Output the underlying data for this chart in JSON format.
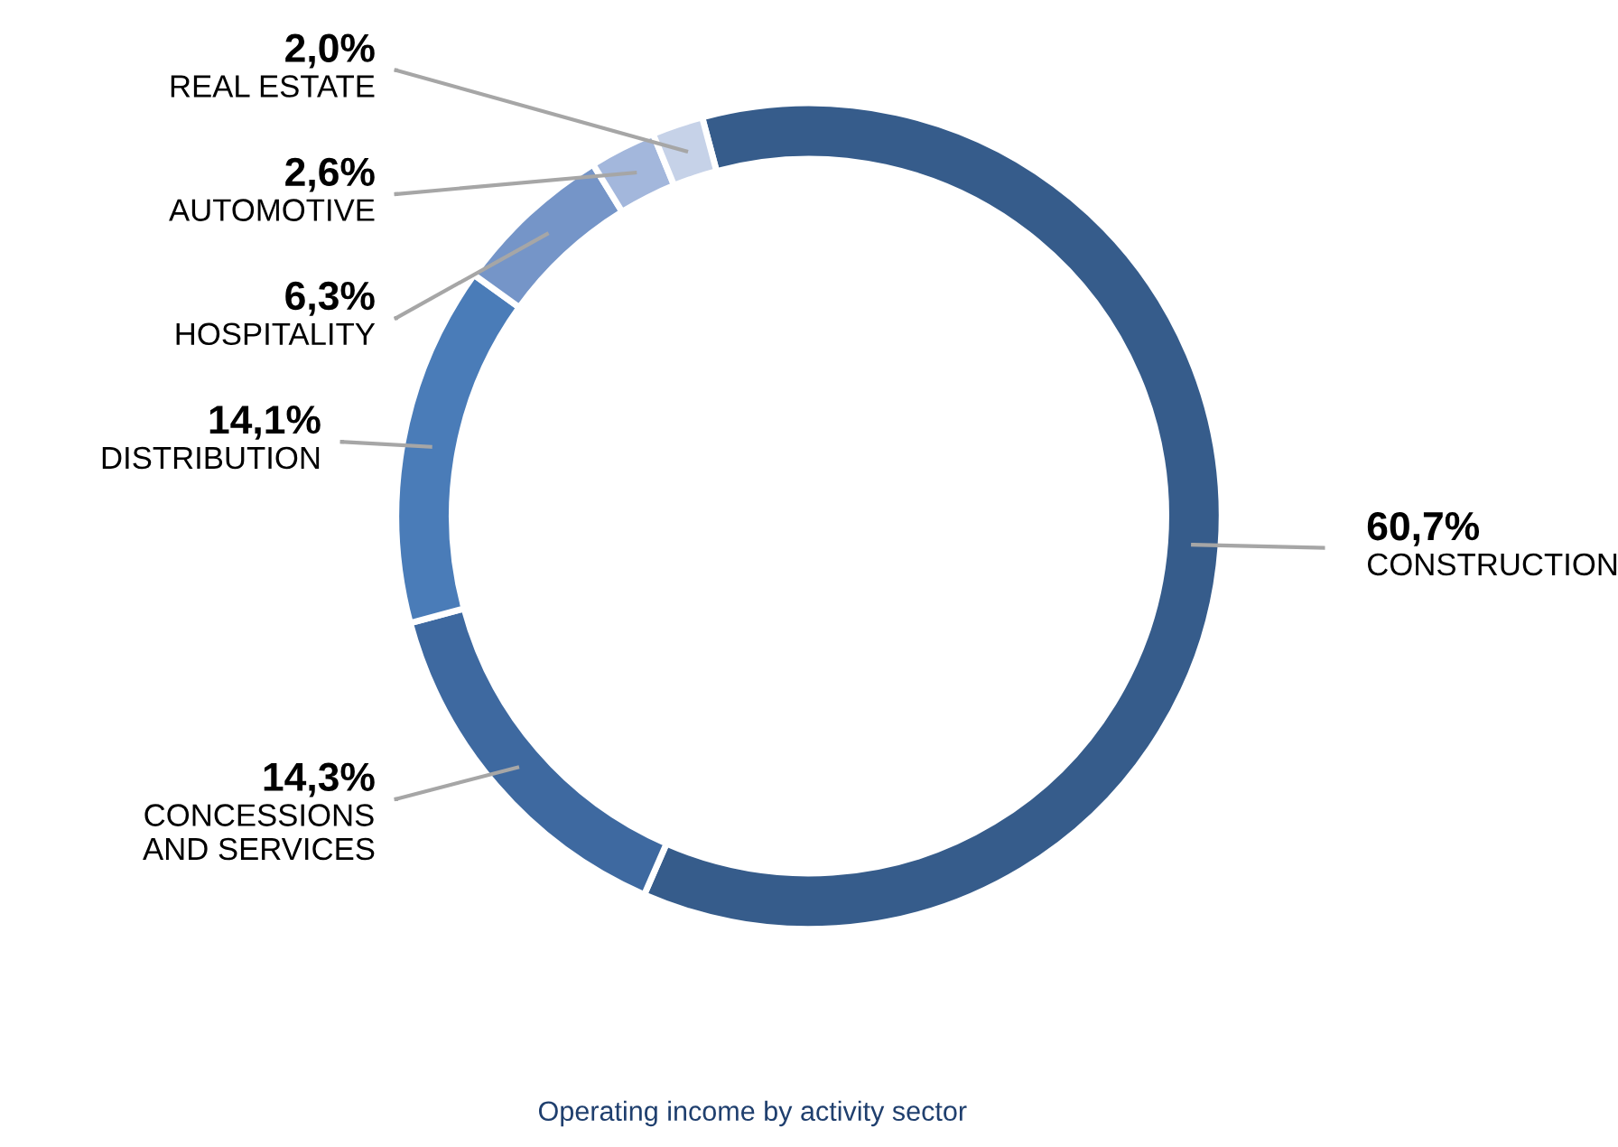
{
  "chart_data": {
    "type": "donut",
    "title": "Operating income by activity sector",
    "categories": [
      "CONSTRUCTION",
      "CONCESSIONS\nAND SERVICES",
      "DISTRIBUTION",
      "HOSPITALITY",
      "AUTOMOTIVE",
      "REAL ESTATE"
    ],
    "values": [
      60.7,
      14.3,
      14.1,
      6.3,
      2.6,
      2.0
    ],
    "value_labels": [
      "60,7%",
      "14,3%",
      "14,1%",
      "6,3%",
      "2,6%",
      "2,0%"
    ],
    "colors": [
      "#365c8b",
      "#3e69a0",
      "#4a7cb8",
      "#7595c8",
      "#a3b7dc",
      "#c6d2e8"
    ],
    "legend": false
  }
}
